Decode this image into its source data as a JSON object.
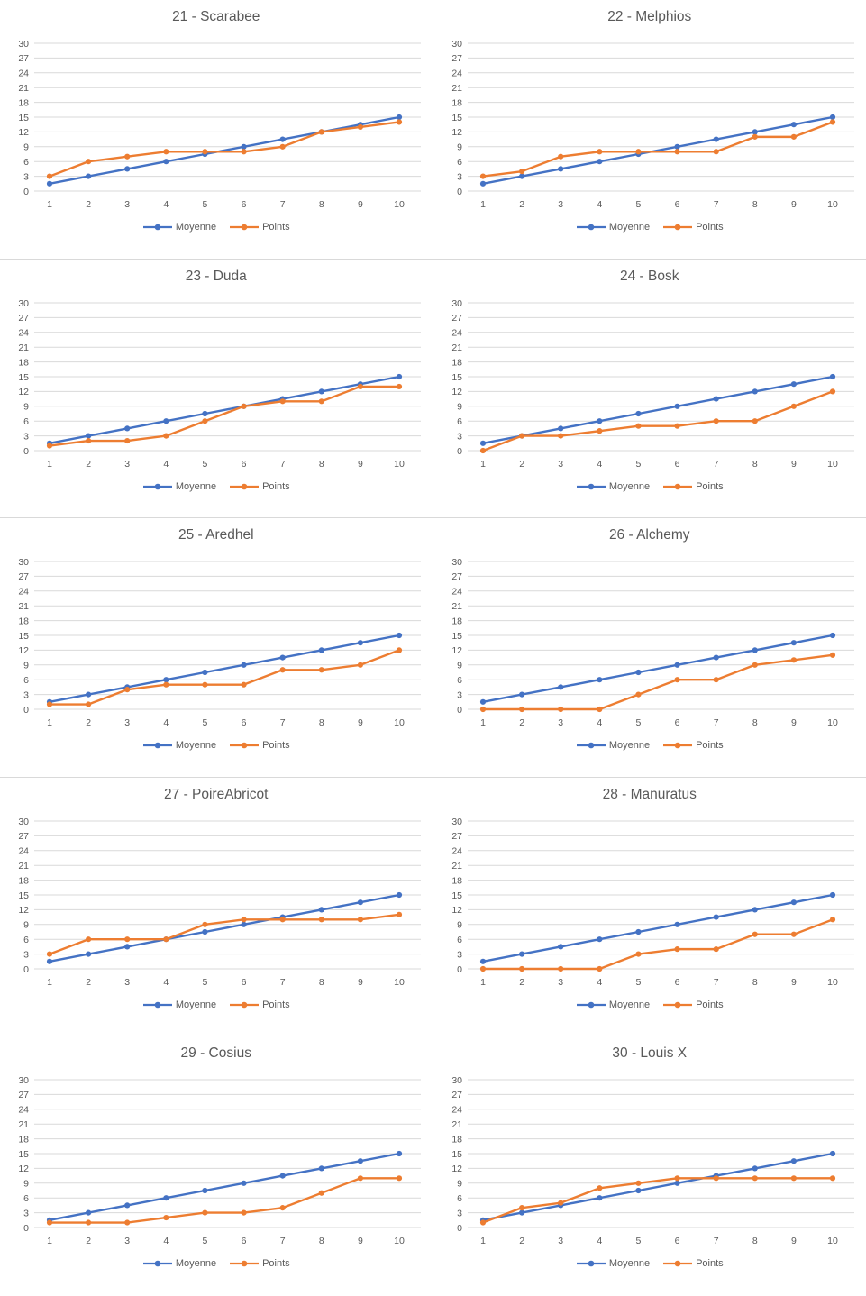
{
  "layout_hints": {
    "legend_position": "bottom",
    "grid": "horizontal",
    "panels": "2x5"
  },
  "style": {
    "moyenne_color": "#4472C4",
    "points_color": "#ED7D31",
    "grid_color": "#D9D9D9",
    "text_color": "#595959",
    "panel_border_color": "#D9D9D9",
    "background": "#FFFFFF"
  },
  "axes": {
    "x_ticks": [
      "1",
      "2",
      "3",
      "4",
      "5",
      "6",
      "7",
      "8",
      "9",
      "10"
    ],
    "y_ticks": [
      "0",
      "3",
      "6",
      "9",
      "12",
      "15",
      "18",
      "21",
      "24",
      "27",
      "30"
    ],
    "ylim": [
      0,
      30
    ],
    "xlim": [
      1,
      10
    ]
  },
  "chart_data": [
    {
      "type": "line",
      "title": "21 - Scarabee",
      "x": [
        1,
        2,
        3,
        4,
        5,
        6,
        7,
        8,
        9,
        10
      ],
      "series": [
        {
          "name": "Moyenne",
          "color": "#4472C4",
          "values": [
            1.5,
            3,
            4.5,
            6,
            7.5,
            9,
            10.5,
            12,
            13.5,
            15
          ]
        },
        {
          "name": "Points",
          "color": "#ED7D31",
          "values": [
            3,
            6,
            7,
            8,
            8,
            8,
            9,
            12,
            13,
            14
          ]
        }
      ]
    },
    {
      "type": "line",
      "title": "22 - Melphios",
      "x": [
        1,
        2,
        3,
        4,
        5,
        6,
        7,
        8,
        9,
        10
      ],
      "series": [
        {
          "name": "Moyenne",
          "color": "#4472C4",
          "values": [
            1.5,
            3,
            4.5,
            6,
            7.5,
            9,
            10.5,
            12,
            13.5,
            15
          ]
        },
        {
          "name": "Points",
          "color": "#ED7D31",
          "values": [
            3,
            4,
            7,
            8,
            8,
            8,
            8,
            11,
            11,
            14
          ]
        }
      ]
    },
    {
      "type": "line",
      "title": "23 - Duda",
      "x": [
        1,
        2,
        3,
        4,
        5,
        6,
        7,
        8,
        9,
        10
      ],
      "series": [
        {
          "name": "Moyenne",
          "color": "#4472C4",
          "values": [
            1.5,
            3,
            4.5,
            6,
            7.5,
            9,
            10.5,
            12,
            13.5,
            15
          ]
        },
        {
          "name": "Points",
          "color": "#ED7D31",
          "values": [
            1,
            2,
            2,
            3,
            6,
            9,
            10,
            10,
            13,
            13
          ]
        }
      ]
    },
    {
      "type": "line",
      "title": "24 - Bosk",
      "x": [
        1,
        2,
        3,
        4,
        5,
        6,
        7,
        8,
        9,
        10
      ],
      "series": [
        {
          "name": "Moyenne",
          "color": "#4472C4",
          "values": [
            1.5,
            3,
            4.5,
            6,
            7.5,
            9,
            10.5,
            12,
            13.5,
            15
          ]
        },
        {
          "name": "Points",
          "color": "#ED7D31",
          "values": [
            0,
            3,
            3,
            4,
            5,
            5,
            6,
            6,
            9,
            12
          ]
        }
      ]
    },
    {
      "type": "line",
      "title": "25 - Aredhel",
      "x": [
        1,
        2,
        3,
        4,
        5,
        6,
        7,
        8,
        9,
        10
      ],
      "series": [
        {
          "name": "Moyenne",
          "color": "#4472C4",
          "values": [
            1.5,
            3,
            4.5,
            6,
            7.5,
            9,
            10.5,
            12,
            13.5,
            15
          ]
        },
        {
          "name": "Points",
          "color": "#ED7D31",
          "values": [
            1,
            1,
            4,
            5,
            5,
            5,
            8,
            8,
            9,
            12
          ]
        }
      ]
    },
    {
      "type": "line",
      "title": "26 - Alchemy",
      "x": [
        1,
        2,
        3,
        4,
        5,
        6,
        7,
        8,
        9,
        10
      ],
      "series": [
        {
          "name": "Moyenne",
          "color": "#4472C4",
          "values": [
            1.5,
            3,
            4.5,
            6,
            7.5,
            9,
            10.5,
            12,
            13.5,
            15
          ]
        },
        {
          "name": "Points",
          "color": "#ED7D31",
          "values": [
            0,
            0,
            0,
            0,
            3,
            6,
            6,
            9,
            10,
            11
          ]
        }
      ]
    },
    {
      "type": "line",
      "title": "27 - PoireAbricot",
      "x": [
        1,
        2,
        3,
        4,
        5,
        6,
        7,
        8,
        9,
        10
      ],
      "series": [
        {
          "name": "Moyenne",
          "color": "#4472C4",
          "values": [
            1.5,
            3,
            4.5,
            6,
            7.5,
            9,
            10.5,
            12,
            13.5,
            15
          ]
        },
        {
          "name": "Points",
          "color": "#ED7D31",
          "values": [
            3,
            6,
            6,
            6,
            9,
            10,
            10,
            10,
            10,
            11
          ]
        }
      ]
    },
    {
      "type": "line",
      "title": "28 - Manuratus",
      "x": [
        1,
        2,
        3,
        4,
        5,
        6,
        7,
        8,
        9,
        10
      ],
      "series": [
        {
          "name": "Moyenne",
          "color": "#4472C4",
          "values": [
            1.5,
            3,
            4.5,
            6,
            7.5,
            9,
            10.5,
            12,
            13.5,
            15
          ]
        },
        {
          "name": "Points",
          "color": "#ED7D31",
          "values": [
            0,
            0,
            0,
            0,
            3,
            4,
            4,
            7,
            7,
            10
          ]
        }
      ]
    },
    {
      "type": "line",
      "title": "29 - Cosius",
      "x": [
        1,
        2,
        3,
        4,
        5,
        6,
        7,
        8,
        9,
        10
      ],
      "series": [
        {
          "name": "Moyenne",
          "color": "#4472C4",
          "values": [
            1.5,
            3,
            4.5,
            6,
            7.5,
            9,
            10.5,
            12,
            13.5,
            15
          ]
        },
        {
          "name": "Points",
          "color": "#ED7D31",
          "values": [
            1,
            1,
            1,
            2,
            3,
            3,
            4,
            7,
            10,
            10
          ]
        }
      ]
    },
    {
      "type": "line",
      "title": "30 - Louis X",
      "x": [
        1,
        2,
        3,
        4,
        5,
        6,
        7,
        8,
        9,
        10
      ],
      "series": [
        {
          "name": "Moyenne",
          "color": "#4472C4",
          "values": [
            1.5,
            3,
            4.5,
            6,
            7.5,
            9,
            10.5,
            12,
            13.5,
            15
          ]
        },
        {
          "name": "Points",
          "color": "#ED7D31",
          "values": [
            1,
            4,
            5,
            8,
            9,
            10,
            10,
            10,
            10,
            10
          ]
        }
      ]
    }
  ]
}
